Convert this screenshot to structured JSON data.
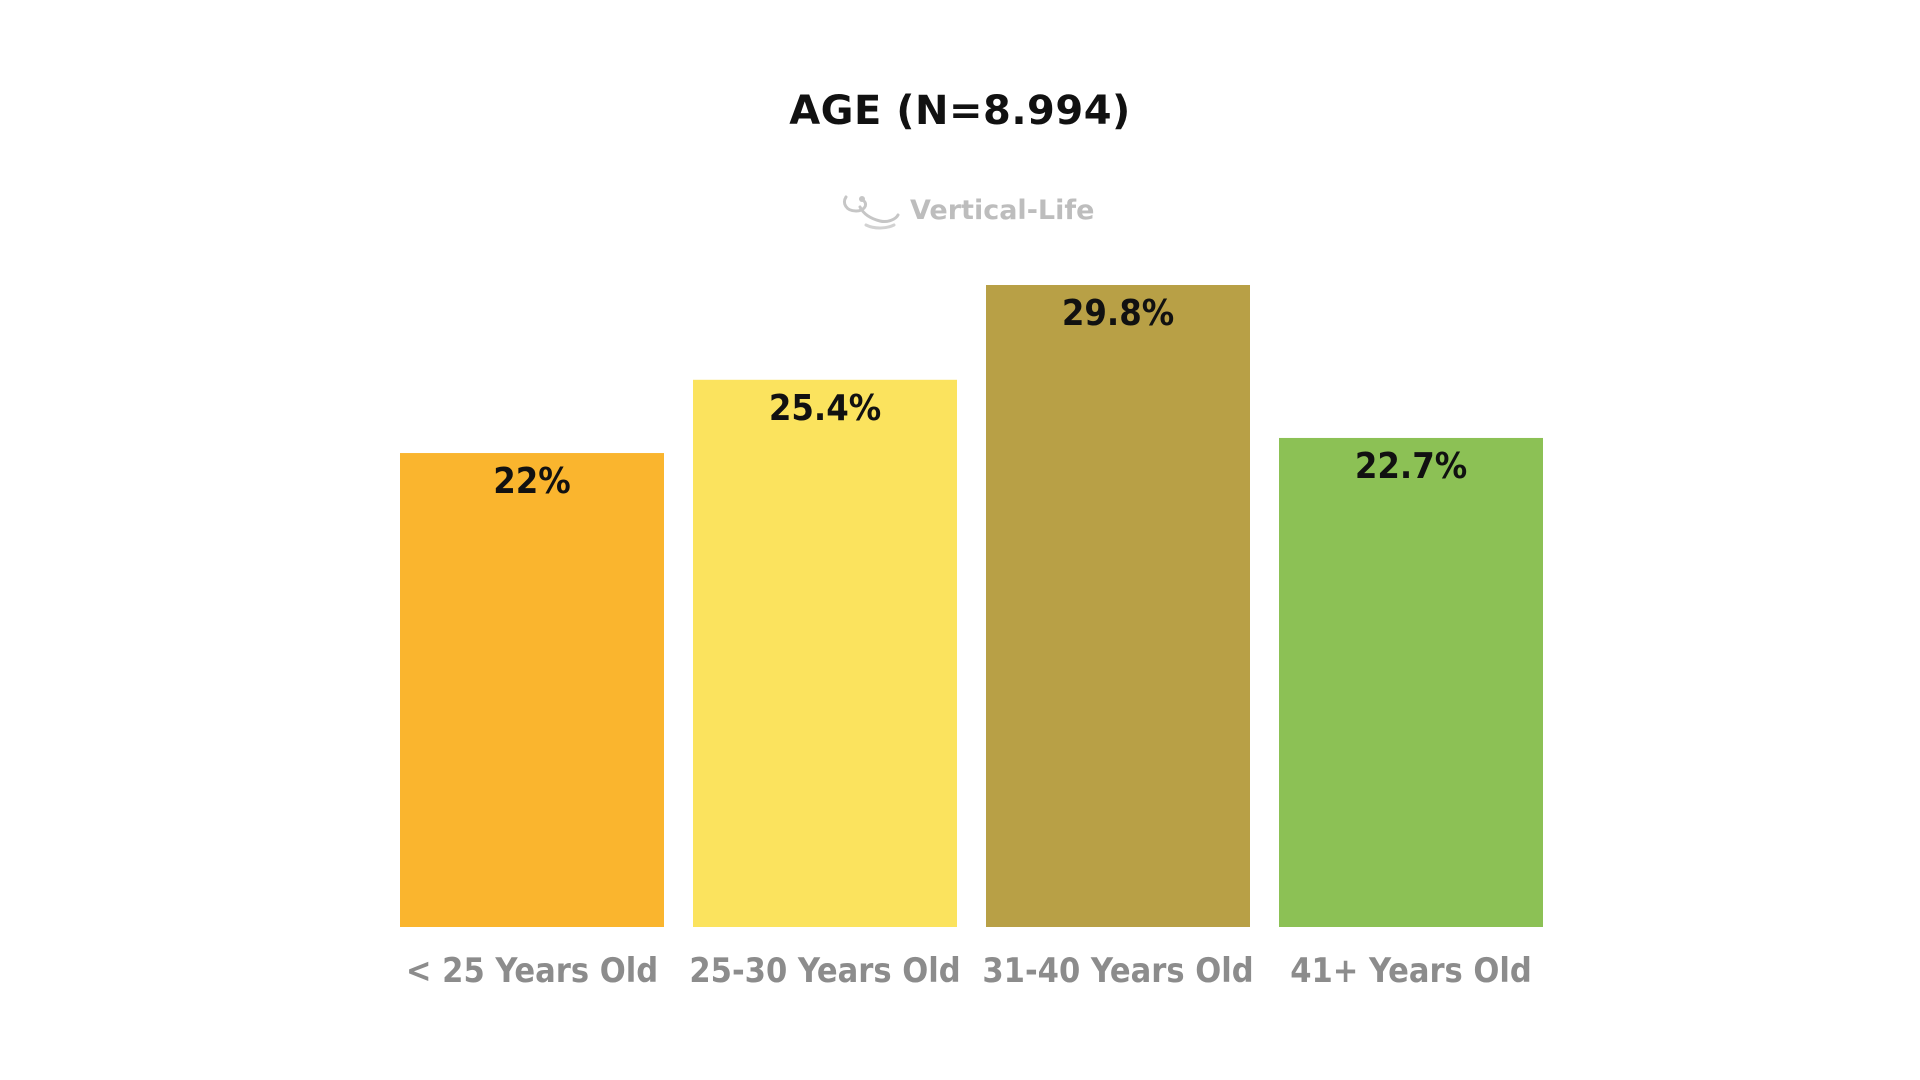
{
  "chart_data": {
    "type": "bar",
    "title": "AGE (N=8.994)",
    "categories": [
      "< 25 Years Old",
      "25-30 Years Old",
      "31-40 Years Old",
      "41+ Years Old"
    ],
    "values": [
      22,
      25.4,
      29.8,
      22.7
    ],
    "value_labels": [
      "22%",
      "25.4%",
      "29.8%",
      "22.7%"
    ],
    "colors": [
      "#FAB52E",
      "#FBE35E",
      "#B8A046",
      "#8CC155"
    ],
    "ylim": [
      0,
      29.8
    ],
    "grid": false,
    "legend": "none",
    "xlabel": "",
    "ylabel": ""
  },
  "brand": {
    "name": "Vertical-Life",
    "icon": "vertical-life-logo-icon"
  }
}
